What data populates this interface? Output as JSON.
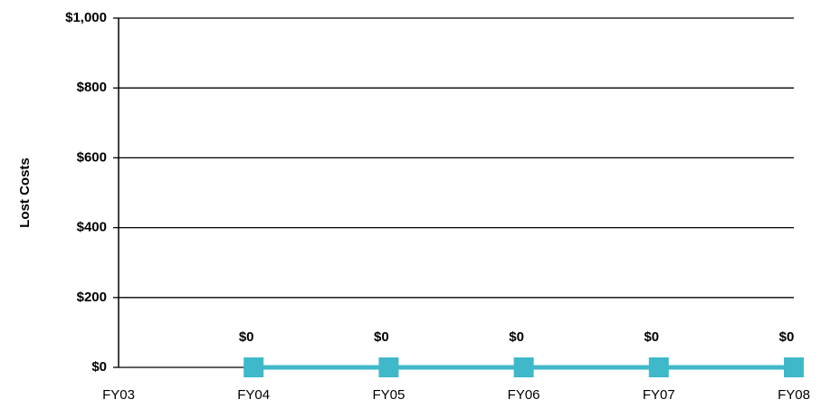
{
  "chart_data": {
    "type": "line",
    "y_label": "Lost Costs",
    "categories": [
      "FY03",
      "FY04",
      "FY05",
      "FY06",
      "FY07",
      "FY08"
    ],
    "series": [
      {
        "name": null,
        "color": "#3fb8c9",
        "values": [
          null,
          0,
          0,
          0,
          0,
          0
        ],
        "value_labels": [
          null,
          "$0",
          "$0",
          "$0",
          "$0",
          "$0"
        ]
      }
    ],
    "ylim": [
      0,
      1000
    ],
    "yticks": [
      {
        "value": 0,
        "label": "$0"
      },
      {
        "value": 200,
        "label": "$200"
      },
      {
        "value": 400,
        "label": "$400"
      },
      {
        "value": 600,
        "label": "$600"
      },
      {
        "value": 800,
        "label": "$800"
      },
      {
        "value": 1000,
        "label": "$1,000"
      }
    ],
    "grid": true
  }
}
